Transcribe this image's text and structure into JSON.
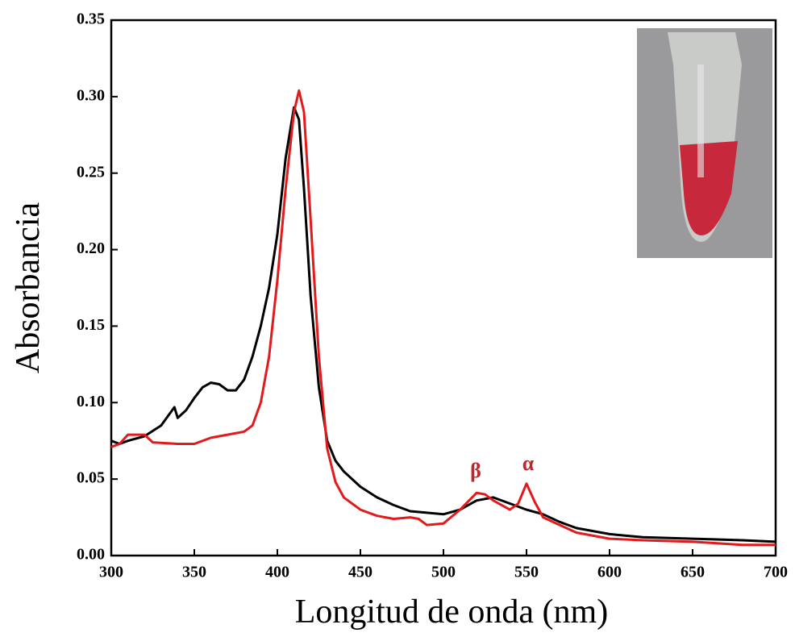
{
  "chart_data": {
    "type": "line",
    "xlabel": "Longitud de onda (nm)",
    "ylabel": "Absorbancia",
    "xlim": [
      300,
      700
    ],
    "xticks": [
      300,
      350,
      400,
      450,
      500,
      550,
      600,
      650,
      700
    ],
    "ylim": [
      0,
      0.35
    ],
    "yticks": [
      {
        "value": 0,
        "label": "0.00"
      },
      {
        "value": 0.05,
        "label": "0.05"
      },
      {
        "value": 0.1,
        "label": "0.10"
      },
      {
        "value": 0.15,
        "label": "0.15"
      },
      {
        "value": 0.2,
        "label": "0.20"
      },
      {
        "value": 0.25,
        "label": "0.25"
      },
      {
        "value": 0.3,
        "label": "0.30"
      },
      {
        "value": 0.35,
        "label": "0.35"
      }
    ],
    "annotations": [
      "β",
      "α"
    ],
    "series": [
      {
        "color": "#000000",
        "x": [
          300,
          305,
          310,
          320,
          330,
          338,
          340,
          345,
          350,
          355,
          360,
          365,
          370,
          375,
          380,
          385,
          390,
          395,
          400,
          405,
          410,
          413,
          416,
          420,
          425,
          430,
          435,
          440,
          450,
          460,
          470,
          480,
          490,
          500,
          510,
          520,
          530,
          540,
          550,
          560,
          570,
          580,
          590,
          600,
          620,
          650,
          680,
          700
        ],
        "values": [
          0.075,
          0.073,
          0.075,
          0.078,
          0.085,
          0.097,
          0.09,
          0.095,
          0.103,
          0.11,
          0.113,
          0.112,
          0.108,
          0.108,
          0.115,
          0.13,
          0.15,
          0.175,
          0.21,
          0.26,
          0.293,
          0.285,
          0.24,
          0.17,
          0.11,
          0.075,
          0.062,
          0.055,
          0.045,
          0.038,
          0.033,
          0.029,
          0.028,
          0.027,
          0.03,
          0.036,
          0.038,
          0.034,
          0.03,
          0.027,
          0.022,
          0.018,
          0.016,
          0.014,
          0.012,
          0.011,
          0.01,
          0.009
        ]
      },
      {
        "color": "#e31a1c",
        "x": [
          300,
          305,
          310,
          320,
          325,
          340,
          350,
          360,
          370,
          380,
          385,
          390,
          395,
          400,
          405,
          410,
          413,
          416,
          420,
          425,
          430,
          435,
          440,
          450,
          460,
          470,
          480,
          485,
          490,
          500,
          510,
          520,
          525,
          530,
          540,
          545,
          550,
          555,
          560,
          570,
          580,
          600,
          620,
          650,
          680,
          700
        ],
        "values": [
          0.071,
          0.073,
          0.079,
          0.079,
          0.074,
          0.073,
          0.073,
          0.077,
          0.079,
          0.081,
          0.085,
          0.1,
          0.13,
          0.18,
          0.24,
          0.29,
          0.304,
          0.29,
          0.22,
          0.13,
          0.07,
          0.048,
          0.038,
          0.03,
          0.026,
          0.024,
          0.025,
          0.024,
          0.02,
          0.021,
          0.03,
          0.041,
          0.04,
          0.036,
          0.03,
          0.034,
          0.047,
          0.035,
          0.025,
          0.02,
          0.015,
          0.011,
          0.01,
          0.009,
          0.007,
          0.007
        ]
      }
    ]
  }
}
